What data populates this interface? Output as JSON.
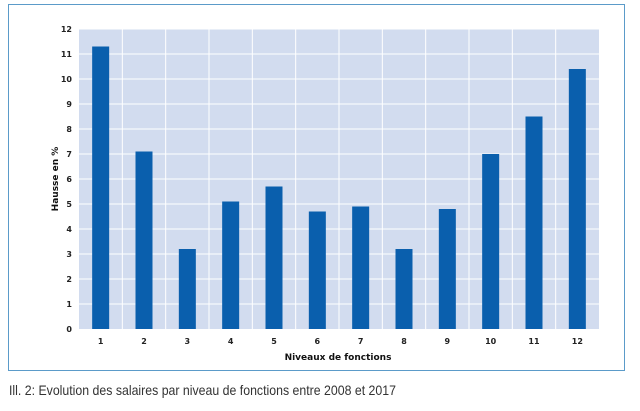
{
  "chart_data": {
    "type": "bar",
    "title": "",
    "xlabel": "Niveaux de fonctions",
    "ylabel": "Hausse en %",
    "categories": [
      "1",
      "2",
      "3",
      "4",
      "5",
      "6",
      "7",
      "8",
      "9",
      "10",
      "11",
      "12"
    ],
    "values": [
      11.3,
      7.1,
      3.2,
      5.1,
      5.7,
      4.7,
      4.9,
      3.2,
      4.8,
      7.0,
      8.5,
      10.4
    ],
    "ylim": [
      0,
      12
    ],
    "yticks": [
      "0",
      "1",
      "2",
      "3",
      "4",
      "5",
      "6",
      "7",
      "8",
      "9",
      "10",
      "11",
      "12"
    ],
    "grid": true,
    "colors": {
      "bar": "#0a5fad",
      "plot_bg": "#d2dcef",
      "grid": "#ffffff",
      "frame": "#5b9bc9"
    }
  },
  "caption": "Ill. 2: Evolution des salaires par niveau de fonctions entre 2008 et 2017"
}
